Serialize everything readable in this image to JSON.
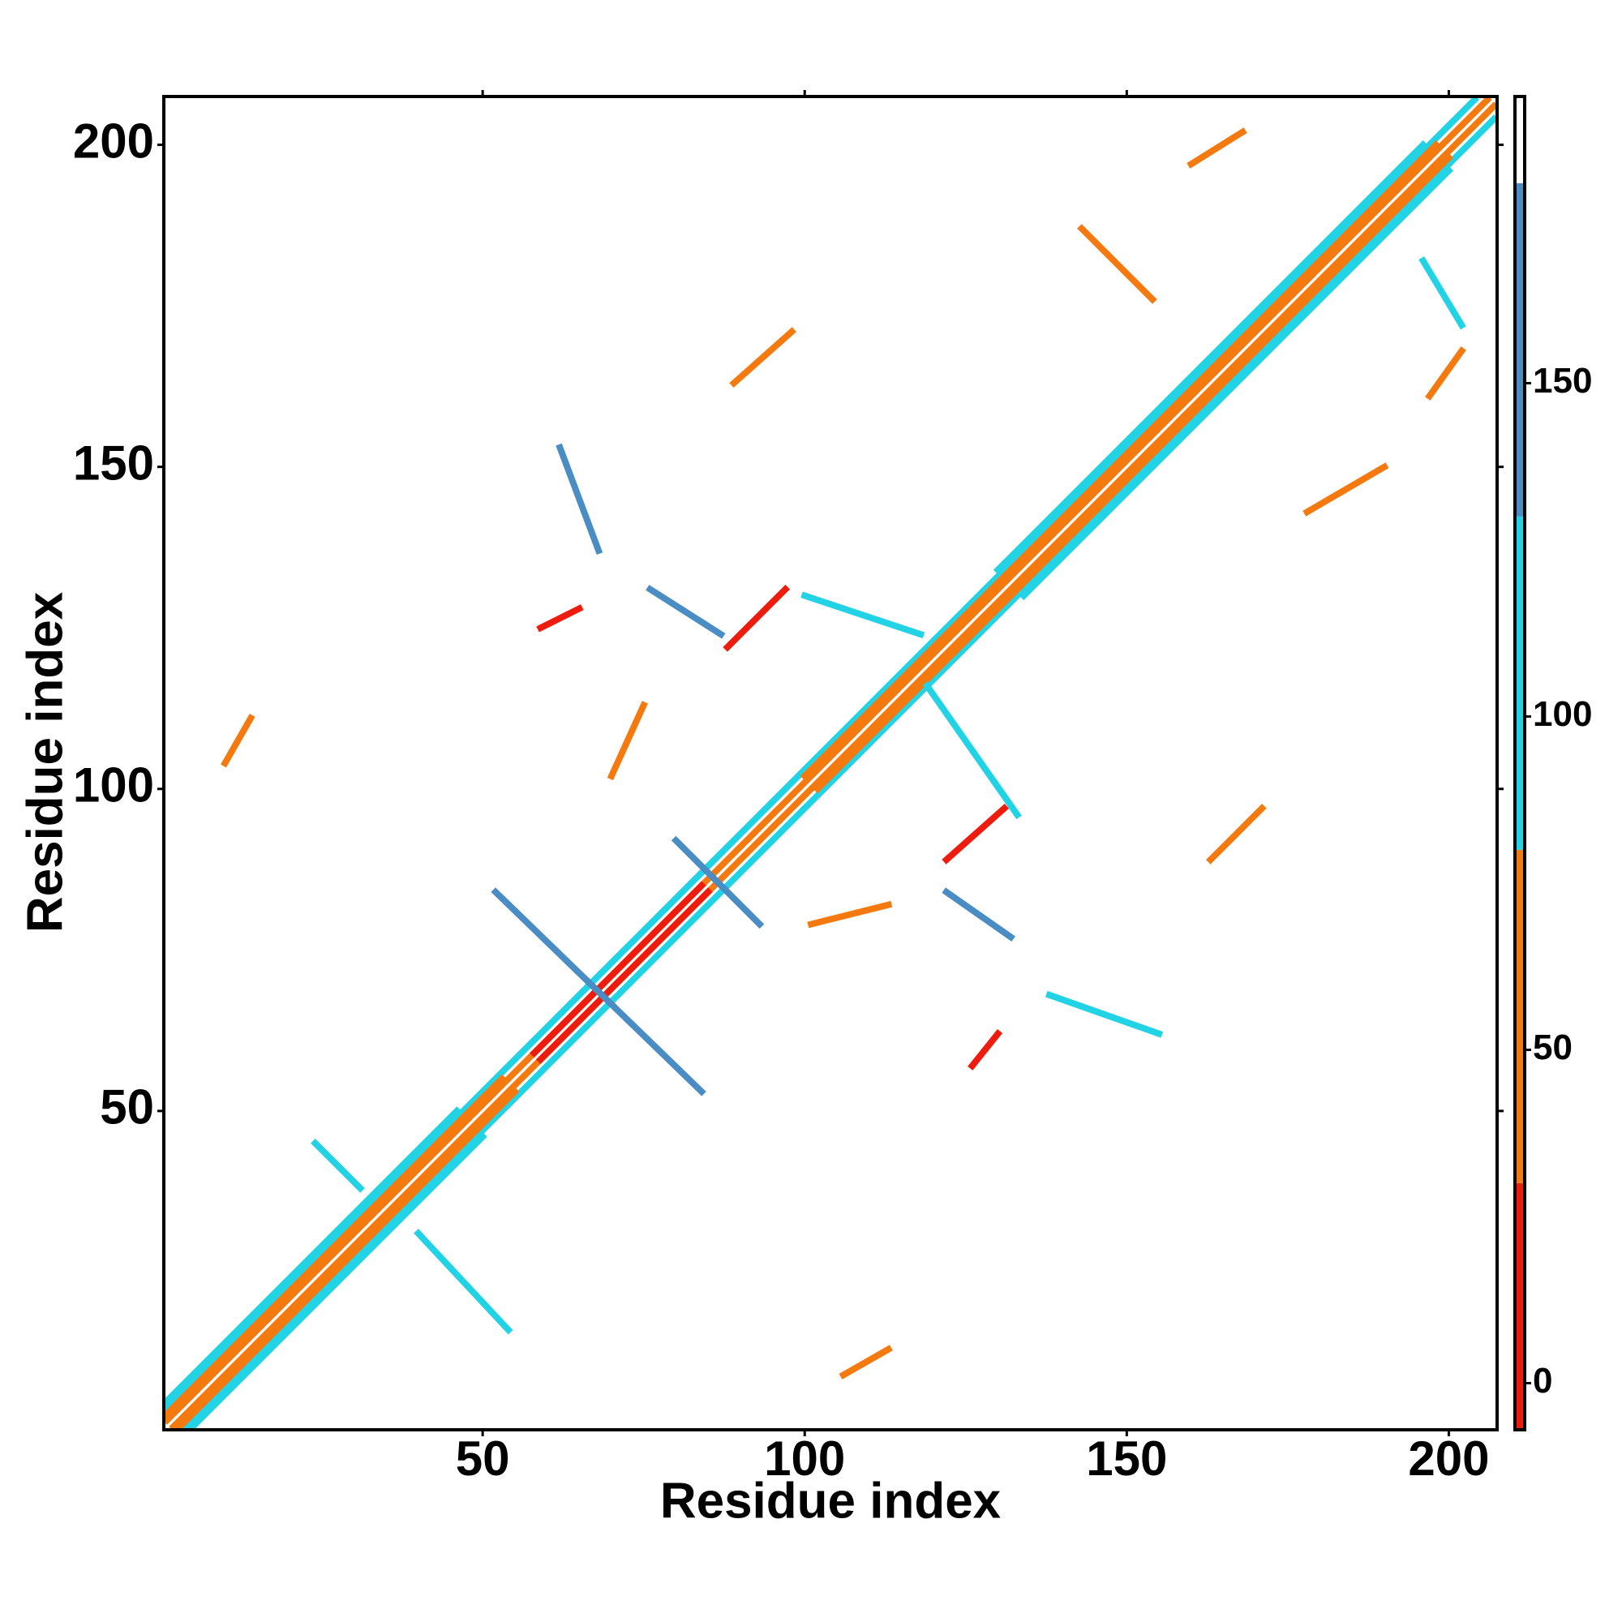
{
  "chart_data": {
    "type": "contact-map",
    "xlabel": "Residue index",
    "ylabel": "Residue index",
    "xlim": [
      0.5,
      207.5
    ],
    "ylim": [
      0.5,
      207.5
    ],
    "xticks": [
      50,
      100,
      150,
      200
    ],
    "yticks": [
      50,
      100,
      150,
      200
    ],
    "x_start": [
      1,
      2,
      1,
      4,
      58,
      59,
      1,
      3,
      100,
      102,
      130,
      134,
      1,
      5,
      52,
      122,
      122,
      88,
      76,
      89,
      163,
      197,
      160,
      62,
      143,
      178,
      138,
      101,
      70,
      10,
      24,
      40,
      106,
      126,
      59,
      80,
      100,
      119,
      196
    ],
    "x_end": [
      206,
      207,
      204,
      207,
      84,
      85,
      53,
      55,
      198,
      200,
      196,
      200,
      46,
      50,
      84,
      132,
      131,
      97,
      87,
      98,
      171,
      202,
      168,
      68,
      154,
      190,
      155,
      113,
      75,
      14,
      31,
      54,
      113,
      130,
      65,
      93,
      118,
      133,
      202
    ],
    "y_start": [
      2,
      1,
      4,
      1,
      59,
      58,
      3,
      1,
      102,
      100,
      134,
      130,
      5,
      1,
      84,
      84,
      89,
      122,
      131,
      163,
      89,
      161,
      197,
      153,
      187,
      143,
      68,
      79,
      102,
      104,
      45,
      31,
      9,
      57,
      125,
      92,
      130,
      116,
      182
    ],
    "y_end": [
      207,
      206,
      207,
      204,
      85,
      84,
      55,
      53,
      200,
      198,
      200,
      196,
      50,
      46,
      53,
      77,
      97,
      131,
      124,
      171,
      97,
      168,
      202,
      137,
      176,
      150,
      62,
      82,
      113,
      111,
      38,
      16,
      13,
      62,
      128,
      79,
      124,
      96,
      172
    ],
    "values": [
      40,
      40,
      100,
      100,
      10,
      10,
      50,
      50,
      50,
      50,
      110,
      110,
      110,
      110,
      160,
      160,
      10,
      10,
      160,
      45,
      45,
      45,
      45,
      150,
      45,
      45,
      100,
      45,
      45,
      45,
      100,
      100,
      45,
      10,
      10,
      160,
      100,
      100,
      100
    ],
    "colorbar": {
      "lim": [
        -7,
        193
      ],
      "ticks": [
        0,
        50,
        100,
        150
      ],
      "edges": [
        -7,
        30,
        80,
        130,
        180,
        193
      ],
      "colors": [
        "#ee1c0c",
        "#f47a10",
        "#22d3e6",
        "#4a8cc4",
        "#ffffff"
      ]
    }
  }
}
